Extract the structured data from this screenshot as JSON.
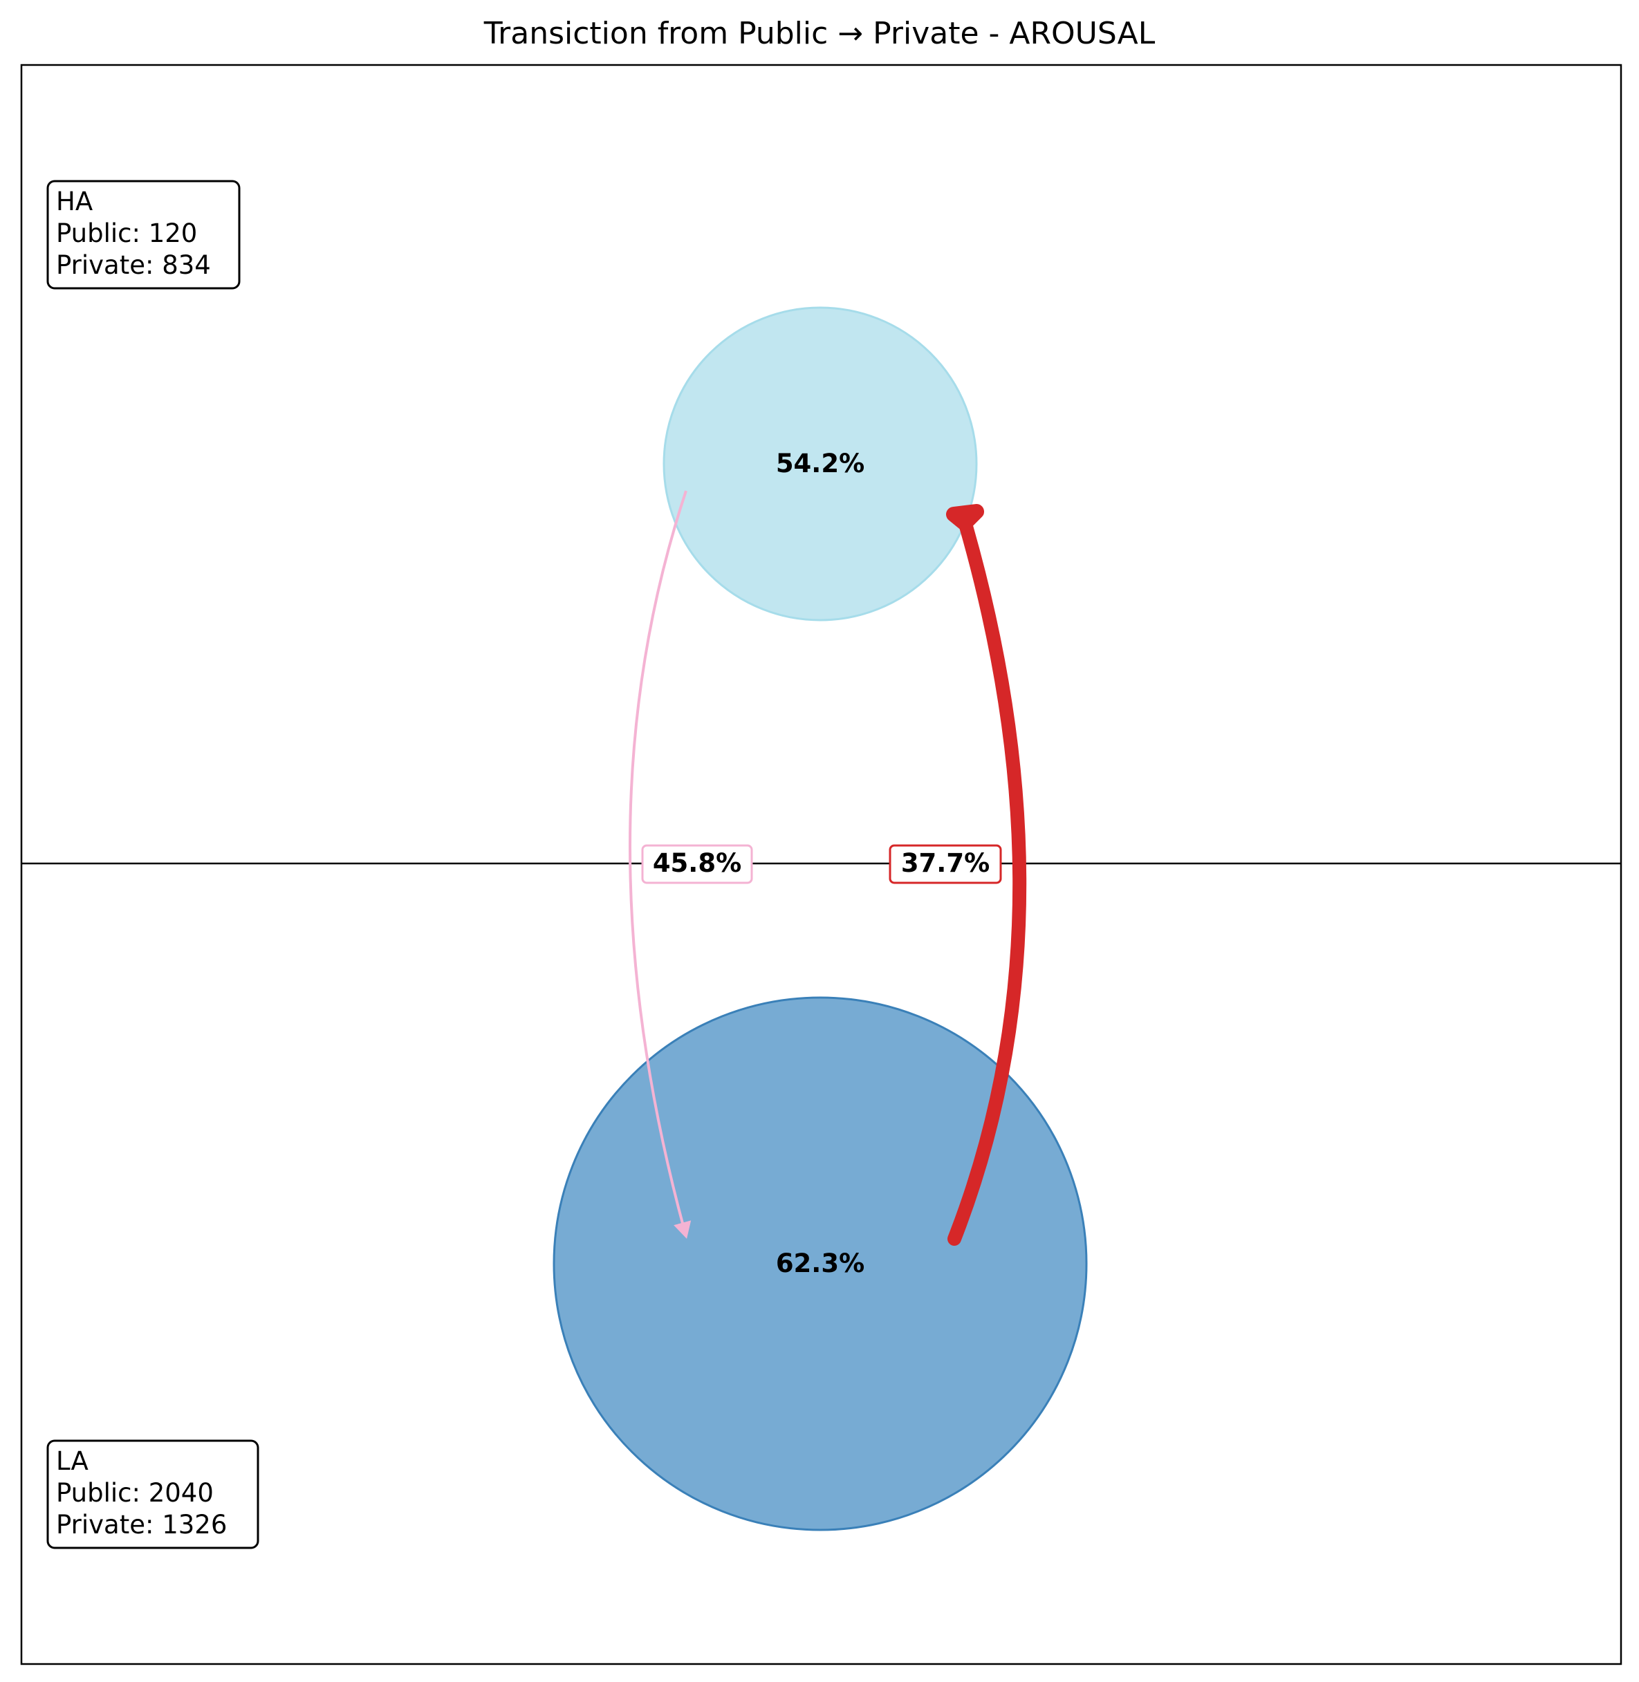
{
  "title": "Transiction from Public → Private - AROUSAL",
  "nodes": [
    {
      "id": "HA",
      "self_percent": "54.2%",
      "color": "#a6dcea",
      "info": {
        "label": "HA",
        "public": "Public: 120",
        "private": "Private: 834"
      }
    },
    {
      "id": "LA",
      "self_percent": "62.3%",
      "color": "#4a8fc4",
      "info": {
        "label": "LA",
        "public": "Public: 2040",
        "private": "Private: 1326"
      }
    }
  ],
  "transitions": [
    {
      "from": "HA",
      "to": "LA",
      "percent": "45.8%",
      "color": "#f4b3d3"
    },
    {
      "from": "LA",
      "to": "HA",
      "percent": "37.7%",
      "color": "#d62728"
    }
  ]
}
